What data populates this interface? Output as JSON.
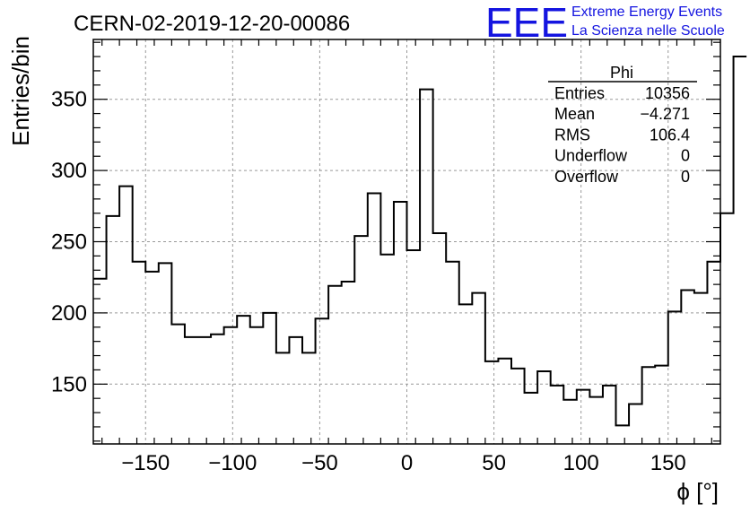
{
  "header": {
    "run_title": "CERN-02-2019-12-20-00086",
    "logo_text": "EEE",
    "brand_line1": "Extreme Energy Events",
    "brand_line2": "La Scienza nelle Scuole",
    "brand_color": "#1414e0"
  },
  "stats_box": {
    "title": "Phi",
    "rows": [
      {
        "label": "Entries",
        "value": "10356"
      },
      {
        "label": "Mean",
        "value": "−4.271"
      },
      {
        "label": "RMS",
        "value": "106.4"
      },
      {
        "label": "Underflow",
        "value": "0"
      },
      {
        "label": "Overflow",
        "value": "0"
      }
    ]
  },
  "chart_data": {
    "type": "histogram",
    "title": "CERN-02-2019-12-20-00086",
    "xlabel": "ϕ [°]",
    "ylabel": "Entries/bin",
    "xlim": [
      -180,
      180
    ],
    "ylim": [
      108,
      392
    ],
    "x_ticks": [
      -150,
      -100,
      -50,
      0,
      50,
      100,
      150
    ],
    "x_tick_labels": [
      "−150",
      "−100",
      "−50",
      "0",
      "50",
      "100",
      "150"
    ],
    "y_ticks": [
      150,
      200,
      250,
      300,
      350
    ],
    "y_tick_labels": [
      "150",
      "200",
      "250",
      "300",
      "350"
    ],
    "grid": true,
    "line_color": "#000000",
    "bin_edges_start": -180,
    "bin_width": 7.5,
    "values": [
      224,
      268,
      289,
      236,
      229,
      235,
      192,
      183,
      183,
      185,
      190,
      198,
      190,
      200,
      172,
      183,
      172,
      196,
      219,
      222,
      254,
      284,
      241,
      278,
      244,
      357,
      256,
      236,
      206,
      214,
      166,
      168,
      161,
      144,
      159,
      149,
      139,
      146,
      141,
      149,
      121,
      136,
      162,
      163,
      201,
      216,
      214,
      236,
      270,
      380
    ]
  }
}
